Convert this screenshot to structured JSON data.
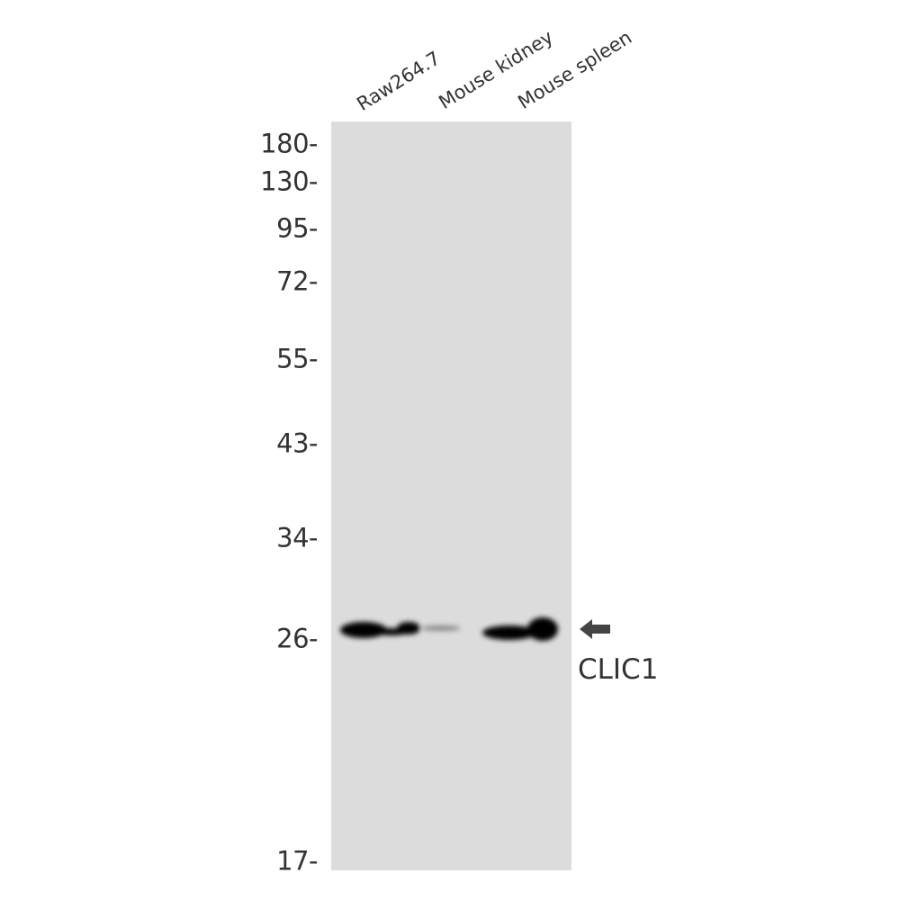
{
  "lanes": [
    "Raw264.7",
    "Mouse kidney",
    "Mouse spleen"
  ],
  "markers": [
    "180-",
    "130-",
    "95-",
    "72-",
    "55-",
    "43-",
    "34-",
    "26-",
    "17-"
  ],
  "target": {
    "label": "CLIC1",
    "arrow_icon": "left-arrow-icon"
  },
  "colors": {
    "membrane": "#dcdcdc",
    "band": "#000000",
    "text": "#333333",
    "arrow": "#444444"
  }
}
